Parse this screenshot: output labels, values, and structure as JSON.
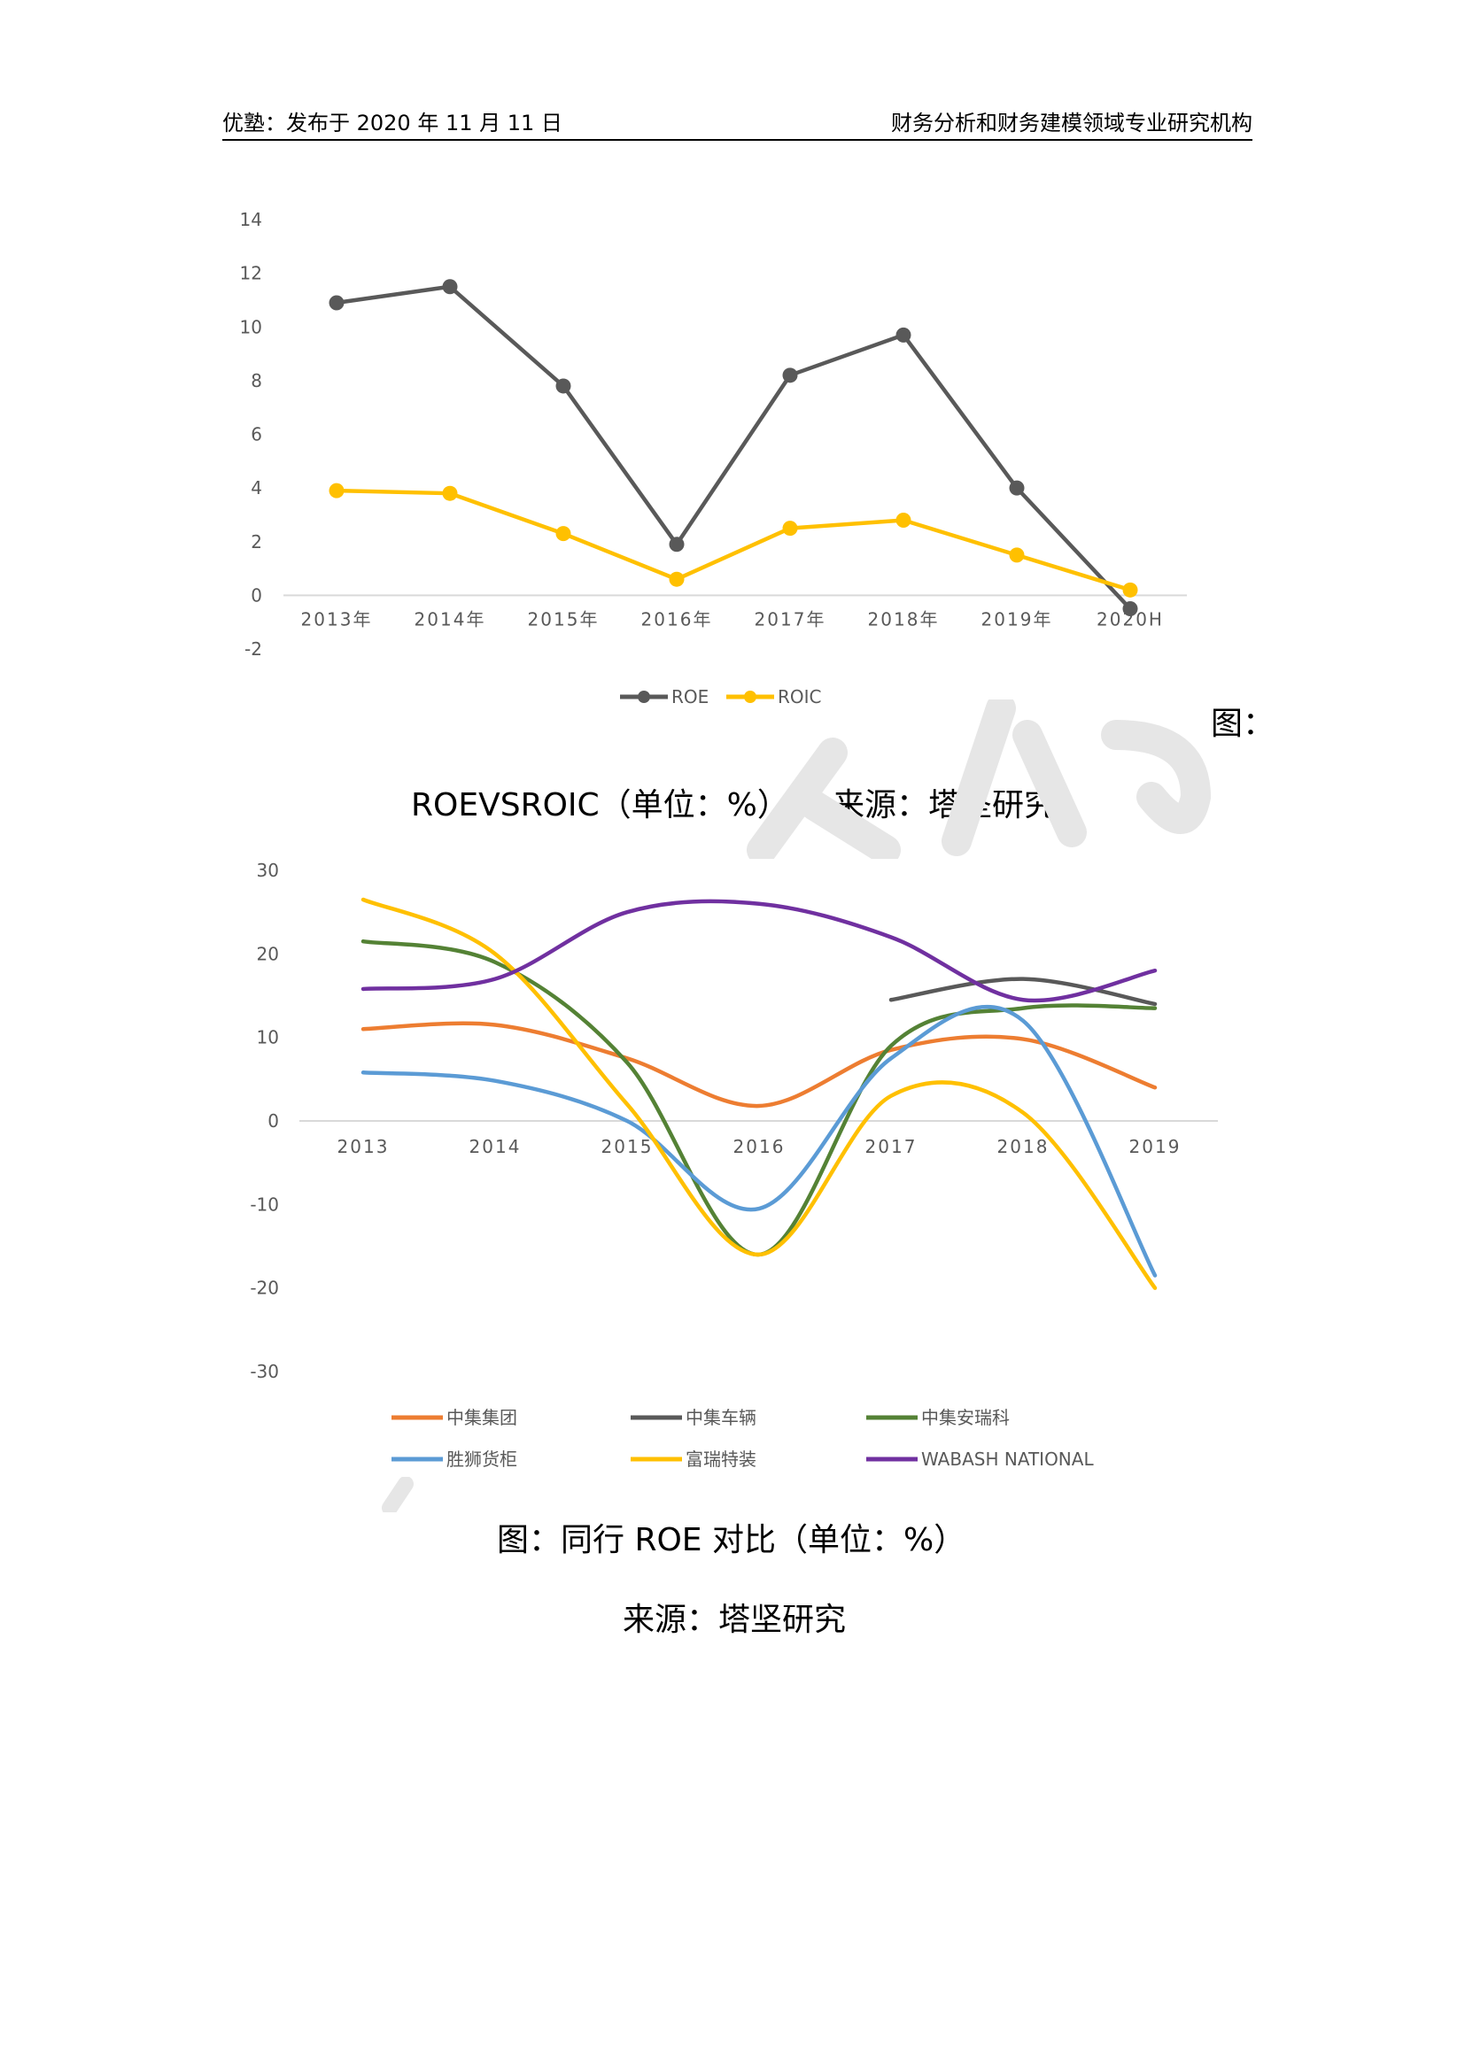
{
  "header": {
    "left": "优塾：发布于 2020 年 11 月 11 日",
    "right": "财务分析和财务建模领域专业研究机构"
  },
  "caption1": {
    "figure_label": "图：",
    "title": "ROEVSROIC（单位：%）",
    "source": "来源：塔坚研究"
  },
  "caption2": {
    "title": "图：同行 ROE 对比（单位：%）",
    "source": "来源：塔坚研究"
  },
  "colors": {
    "roe": "#595959",
    "roic": "#FFC000",
    "zhongji_group": "#ED7D31",
    "zhongji_vehicle": "#595959",
    "zhongji_anruike": "#548235",
    "shengshi": "#5B9BD5",
    "furui": "#FFC000",
    "wabash": "#7030A0"
  },
  "chart_data": [
    {
      "type": "line",
      "title": "",
      "categories": [
        "2013年",
        "2014年",
        "2015年",
        "2016年",
        "2017年",
        "2018年",
        "2019年",
        "2020H"
      ],
      "ylim": [
        -2,
        14
      ],
      "yticks": [
        -2,
        0,
        2,
        4,
        6,
        8,
        10,
        12,
        14
      ],
      "legend": "bottom",
      "grid": false,
      "series": [
        {
          "name": "ROE",
          "values": [
            10.9,
            11.5,
            7.8,
            1.9,
            8.2,
            9.7,
            4.0,
            -0.5
          ]
        },
        {
          "name": "ROIC",
          "values": [
            3.9,
            3.8,
            2.3,
            0.6,
            2.5,
            2.8,
            1.5,
            0.2
          ]
        }
      ]
    },
    {
      "type": "line",
      "title": "",
      "smooth": true,
      "categories": [
        "2013",
        "2014",
        "2015",
        "2016",
        "2017",
        "2018",
        "2019"
      ],
      "ylim": [
        -30,
        30
      ],
      "yticks": [
        -30,
        -20,
        -10,
        0,
        10,
        20,
        30
      ],
      "legend": "bottom",
      "grid": false,
      "series": [
        {
          "name": "中集集团",
          "values": [
            11.0,
            11.5,
            7.5,
            1.8,
            8.5,
            9.8,
            4.0
          ]
        },
        {
          "name": "中集车辆",
          "values": [
            null,
            null,
            null,
            null,
            14.5,
            17.0,
            14.0
          ]
        },
        {
          "name": "中集安瑞科",
          "values": [
            21.5,
            19.0,
            7.0,
            -16.0,
            9.0,
            13.5,
            13.5
          ]
        },
        {
          "name": "胜狮货柜",
          "values": [
            5.8,
            4.8,
            0.0,
            -10.5,
            7.5,
            12.0,
            -18.5
          ]
        },
        {
          "name": "富瑞特装",
          "values": [
            26.5,
            20.0,
            2.0,
            -16.0,
            3.0,
            1.0,
            -20.0
          ]
        },
        {
          "name": "WABASH NATIONAL",
          "values": [
            15.8,
            17.0,
            25.0,
            26.0,
            22.0,
            14.5,
            18.0
          ]
        }
      ]
    }
  ]
}
